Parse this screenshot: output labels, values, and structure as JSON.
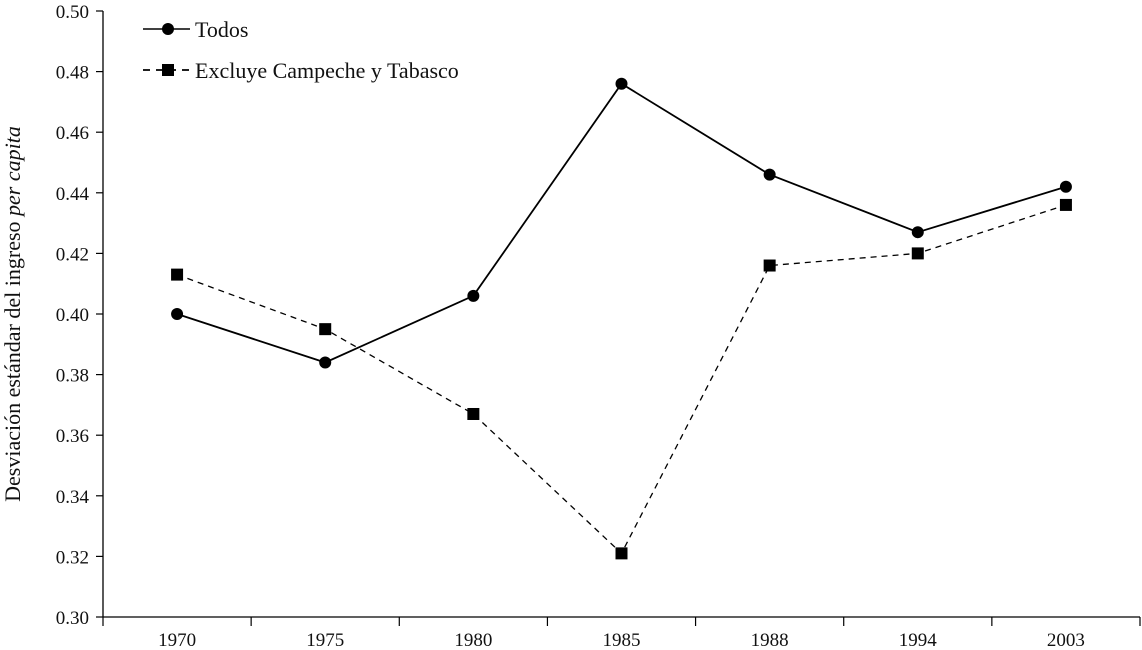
{
  "chart_data": {
    "type": "line",
    "title": "",
    "xlabel": "",
    "ylabel": "Desviación estándar del ingreso",
    "ylabel_italic": "per capita",
    "categories": [
      "1970",
      "1975",
      "1980",
      "1985",
      "1988",
      "1994",
      "2003"
    ],
    "ylim": [
      0.3,
      0.5
    ],
    "yticks": [
      "0.30",
      "0.32",
      "0.34",
      "0.36",
      "0.38",
      "0.40",
      "0.42",
      "0.44",
      "0.46",
      "0.48",
      "0.50"
    ],
    "grid": false,
    "legend": "top-left",
    "series": [
      {
        "name": "Todos",
        "marker": "circle",
        "line_style": "solid",
        "color": "#000000",
        "values": [
          0.4,
          0.384,
          0.406,
          0.476,
          0.446,
          0.427,
          0.442
        ]
      },
      {
        "name": "Excluye Campeche y Tabasco",
        "marker": "square",
        "line_style": "dashed",
        "color": "#000000",
        "values": [
          0.413,
          0.395,
          0.367,
          0.321,
          0.416,
          0.42,
          0.436
        ]
      }
    ]
  }
}
